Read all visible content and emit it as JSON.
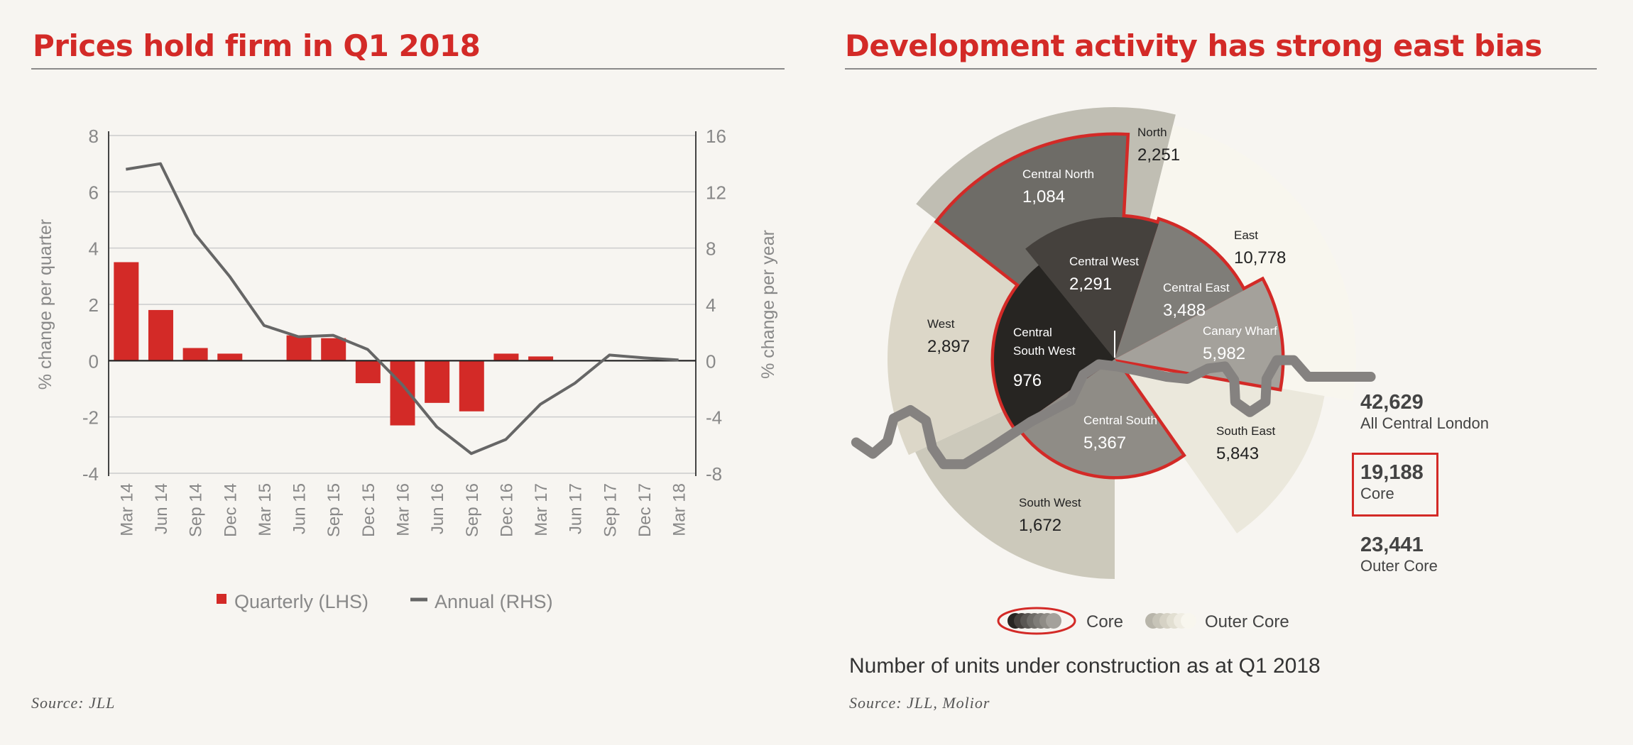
{
  "left": {
    "title": "Prices hold firm in Q1 2018",
    "source": "Source: JLL"
  },
  "right": {
    "title": "Development activity has strong east bias",
    "caption": "Number of units under construction as at Q1 2018",
    "source": "Source: JLL, Molior",
    "totals": [
      {
        "value": "42,629",
        "label": "All Central London"
      },
      {
        "value": "19,188",
        "label": "Core"
      },
      {
        "value": "23,441",
        "label": "Outer Core"
      }
    ],
    "legend": {
      "core": "Core",
      "outer": "Outer Core"
    },
    "colors": {
      "core_outline": "#d32a27"
    }
  },
  "chart_data": [
    {
      "type": "bar+line",
      "title": "Prices hold firm in Q1 2018",
      "categories": [
        "Mar 14",
        "Jun 14",
        "Sep 14",
        "Dec 14",
        "Mar 15",
        "Jun 15",
        "Sep 15",
        "Dec 15",
        "Mar 16",
        "Jun 16",
        "Sep 16",
        "Dec 16",
        "Mar 17",
        "Jun 17",
        "Sep 17",
        "Dec 17",
        "Mar 18"
      ],
      "ylabel": "% change per quarter",
      "ylabel_right": "% change per year",
      "ylim": [
        -4,
        8
      ],
      "yticks": [
        "8",
        "6",
        "4",
        "2",
        "0",
        "-2",
        "-4"
      ],
      "ylim_right": [
        -8,
        16
      ],
      "yticks_right": [
        "16",
        "12",
        "8",
        "4",
        "0",
        "-4",
        "-8"
      ],
      "grid": true,
      "legend_placement": "bottom",
      "series": [
        {
          "name": "Quarterly (LHS)",
          "type": "bar",
          "axis": "left",
          "color": "#d32a27",
          "values": [
            3.5,
            1.8,
            0.45,
            0.25,
            0,
            0.9,
            0.8,
            -0.8,
            -2.3,
            -1.5,
            -1.8,
            0.25,
            0.15,
            0,
            0,
            0,
            0
          ]
        },
        {
          "name": "Annual  (RHS)",
          "type": "line",
          "axis": "right",
          "color": "#666666",
          "values": [
            13.6,
            14.0,
            9.0,
            6.0,
            2.5,
            1.7,
            1.8,
            0.8,
            -1.7,
            -4.7,
            -6.6,
            -5.6,
            -3.1,
            -1.6,
            0.4,
            0.2,
            0.05
          ]
        }
      ]
    },
    {
      "type": "radial",
      "title": "Development activity has strong east bias",
      "segments": [
        {
          "name": "North",
          "value": "2,251",
          "group": "outer",
          "color": "#c0beb3"
        },
        {
          "name": "East",
          "value": "10,778",
          "group": "outer",
          "color": "#f8f6ee"
        },
        {
          "name": "South East",
          "value": "5,843",
          "group": "outer",
          "color": "#ebe8dc"
        },
        {
          "name": "South West",
          "value": "1,672",
          "group": "outer",
          "color": "#ccc9bb"
        },
        {
          "name": "West",
          "value": "2,897",
          "group": "outer",
          "color": "#dcd7c8"
        },
        {
          "name": "Central North",
          "value": "1,084",
          "group": "core",
          "color": "#6e6c67"
        },
        {
          "name": "Central West",
          "value": "2,291",
          "group": "core",
          "color": "#45413d"
        },
        {
          "name": "Central East",
          "value": "3,488",
          "group": "core",
          "color": "#7f7d78"
        },
        {
          "name": "Canary Wharf",
          "value": "5,982",
          "group": "core",
          "color": "#a4a19b"
        },
        {
          "name": "Central South",
          "value": "5,367",
          "group": "core",
          "color": "#8f8c86"
        },
        {
          "name": "Central South West",
          "value": "976",
          "group": "core",
          "color": "#272522"
        }
      ]
    }
  ]
}
